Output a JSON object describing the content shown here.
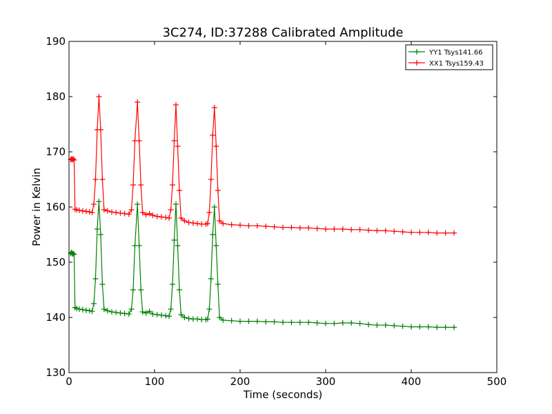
{
  "chart_data": {
    "type": "line",
    "title": "3C274, ID:37288 Calibrated Amplitude",
    "xlabel": "Time (seconds)",
    "ylabel": "Power in Kelvin",
    "xlim": [
      0,
      500
    ],
    "ylim": [
      130,
      190
    ],
    "xticks": [
      "0",
      "100",
      "200",
      "300",
      "400",
      "500"
    ],
    "yticks": [
      "130",
      "140",
      "150",
      "160",
      "170",
      "180",
      "190"
    ],
    "grid": false,
    "legend_position": "top-right",
    "marker": "+",
    "series": [
      {
        "name": "YY1 Tsys141.66",
        "color": "#008000",
        "points": [
          [
            2,
            151.6
          ],
          [
            3,
            151.8
          ],
          [
            4,
            151.5
          ],
          [
            5,
            151.6
          ],
          [
            6,
            151.4
          ],
          [
            7,
            141.8
          ],
          [
            9,
            141.6
          ],
          [
            12,
            141.5
          ],
          [
            16,
            141.4
          ],
          [
            20,
            141.3
          ],
          [
            24,
            141.2
          ],
          [
            27,
            141.1
          ],
          [
            29,
            142.5
          ],
          [
            31,
            147.0
          ],
          [
            33,
            156.0
          ],
          [
            35,
            161.0
          ],
          [
            37,
            155.0
          ],
          [
            39,
            146.0
          ],
          [
            41,
            141.5
          ],
          [
            45,
            141.2
          ],
          [
            50,
            141.0
          ],
          [
            55,
            140.9
          ],
          [
            60,
            140.8
          ],
          [
            65,
            140.7
          ],
          [
            70,
            140.6
          ],
          [
            73,
            141.5
          ],
          [
            75,
            145.0
          ],
          [
            77,
            153.0
          ],
          [
            80,
            160.5
          ],
          [
            82,
            153.0
          ],
          [
            84,
            145.0
          ],
          [
            86,
            141.0
          ],
          [
            90,
            140.8
          ],
          [
            94,
            141.1
          ],
          [
            98,
            140.6
          ],
          [
            103,
            140.5
          ],
          [
            108,
            140.4
          ],
          [
            113,
            140.3
          ],
          [
            117,
            140.2
          ],
          [
            119,
            141.5
          ],
          [
            121,
            146.0
          ],
          [
            123,
            154.0
          ],
          [
            125,
            160.5
          ],
          [
            127,
            153.0
          ],
          [
            129,
            145.0
          ],
          [
            131,
            140.5
          ],
          [
            135,
            140.0
          ],
          [
            140,
            139.8
          ],
          [
            145,
            139.7
          ],
          [
            150,
            139.7
          ],
          [
            155,
            139.6
          ],
          [
            160,
            139.6
          ],
          [
            162,
            139.7
          ],
          [
            164,
            141.5
          ],
          [
            166,
            147.0
          ],
          [
            168,
            155.0
          ],
          [
            170,
            160.0
          ],
          [
            172,
            153.0
          ],
          [
            174,
            146.0
          ],
          [
            176,
            140.0
          ],
          [
            180,
            139.5
          ],
          [
            190,
            139.4
          ],
          [
            200,
            139.3
          ],
          [
            210,
            139.3
          ],
          [
            220,
            139.3
          ],
          [
            230,
            139.2
          ],
          [
            240,
            139.2
          ],
          [
            250,
            139.1
          ],
          [
            260,
            139.1
          ],
          [
            270,
            139.1
          ],
          [
            280,
            139.1
          ],
          [
            290,
            139.0
          ],
          [
            300,
            138.9
          ],
          [
            310,
            138.9
          ],
          [
            320,
            139.0
          ],
          [
            330,
            139.0
          ],
          [
            340,
            138.9
          ],
          [
            350,
            138.7
          ],
          [
            360,
            138.6
          ],
          [
            370,
            138.6
          ],
          [
            380,
            138.5
          ],
          [
            390,
            138.4
          ],
          [
            400,
            138.3
          ],
          [
            410,
            138.3
          ],
          [
            420,
            138.3
          ],
          [
            430,
            138.2
          ],
          [
            440,
            138.2
          ],
          [
            450,
            138.2
          ]
        ]
      },
      {
        "name": "XX1 Tsys159.43",
        "color": "#ff0000",
        "points": [
          [
            2,
            168.6
          ],
          [
            3,
            168.7
          ],
          [
            4,
            168.6
          ],
          [
            5,
            168.7
          ],
          [
            6,
            168.5
          ],
          [
            7,
            159.6
          ],
          [
            9,
            159.5
          ],
          [
            12,
            159.4
          ],
          [
            16,
            159.3
          ],
          [
            20,
            159.2
          ],
          [
            24,
            159.1
          ],
          [
            27,
            159.0
          ],
          [
            29,
            160.5
          ],
          [
            31,
            165.0
          ],
          [
            33,
            174.0
          ],
          [
            35,
            180.0
          ],
          [
            37,
            174.0
          ],
          [
            39,
            165.0
          ],
          [
            41,
            159.5
          ],
          [
            45,
            159.3
          ],
          [
            50,
            159.1
          ],
          [
            55,
            159.0
          ],
          [
            60,
            158.9
          ],
          [
            65,
            158.8
          ],
          [
            70,
            158.7
          ],
          [
            73,
            159.5
          ],
          [
            75,
            164.0
          ],
          [
            77,
            172.0
          ],
          [
            80,
            179.0
          ],
          [
            82,
            172.0
          ],
          [
            84,
            164.0
          ],
          [
            86,
            159.0
          ],
          [
            90,
            158.6
          ],
          [
            94,
            158.8
          ],
          [
            98,
            158.5
          ],
          [
            103,
            158.3
          ],
          [
            108,
            158.2
          ],
          [
            113,
            158.1
          ],
          [
            117,
            158.0
          ],
          [
            119,
            159.5
          ],
          [
            121,
            164.0
          ],
          [
            123,
            172.0
          ],
          [
            125,
            178.5
          ],
          [
            127,
            171.0
          ],
          [
            129,
            163.0
          ],
          [
            131,
            158.0
          ],
          [
            135,
            157.5
          ],
          [
            140,
            157.2
          ],
          [
            145,
            157.1
          ],
          [
            150,
            157.0
          ],
          [
            155,
            156.9
          ],
          [
            160,
            156.9
          ],
          [
            162,
            157.0
          ],
          [
            164,
            159.0
          ],
          [
            166,
            165.0
          ],
          [
            168,
            173.0
          ],
          [
            170,
            178.0
          ],
          [
            172,
            171.0
          ],
          [
            174,
            163.0
          ],
          [
            176,
            157.5
          ],
          [
            180,
            157.0
          ],
          [
            190,
            156.8
          ],
          [
            200,
            156.7
          ],
          [
            210,
            156.6
          ],
          [
            220,
            156.6
          ],
          [
            230,
            156.5
          ],
          [
            240,
            156.4
          ],
          [
            250,
            156.3
          ],
          [
            260,
            156.3
          ],
          [
            270,
            156.2
          ],
          [
            280,
            156.2
          ],
          [
            290,
            156.1
          ],
          [
            300,
            156.0
          ],
          [
            310,
            156.0
          ],
          [
            320,
            156.0
          ],
          [
            330,
            155.9
          ],
          [
            340,
            155.9
          ],
          [
            350,
            155.8
          ],
          [
            360,
            155.7
          ],
          [
            370,
            155.7
          ],
          [
            380,
            155.6
          ],
          [
            390,
            155.5
          ],
          [
            400,
            155.4
          ],
          [
            410,
            155.4
          ],
          [
            420,
            155.4
          ],
          [
            430,
            155.3
          ],
          [
            440,
            155.3
          ],
          [
            450,
            155.3
          ]
        ]
      }
    ]
  }
}
